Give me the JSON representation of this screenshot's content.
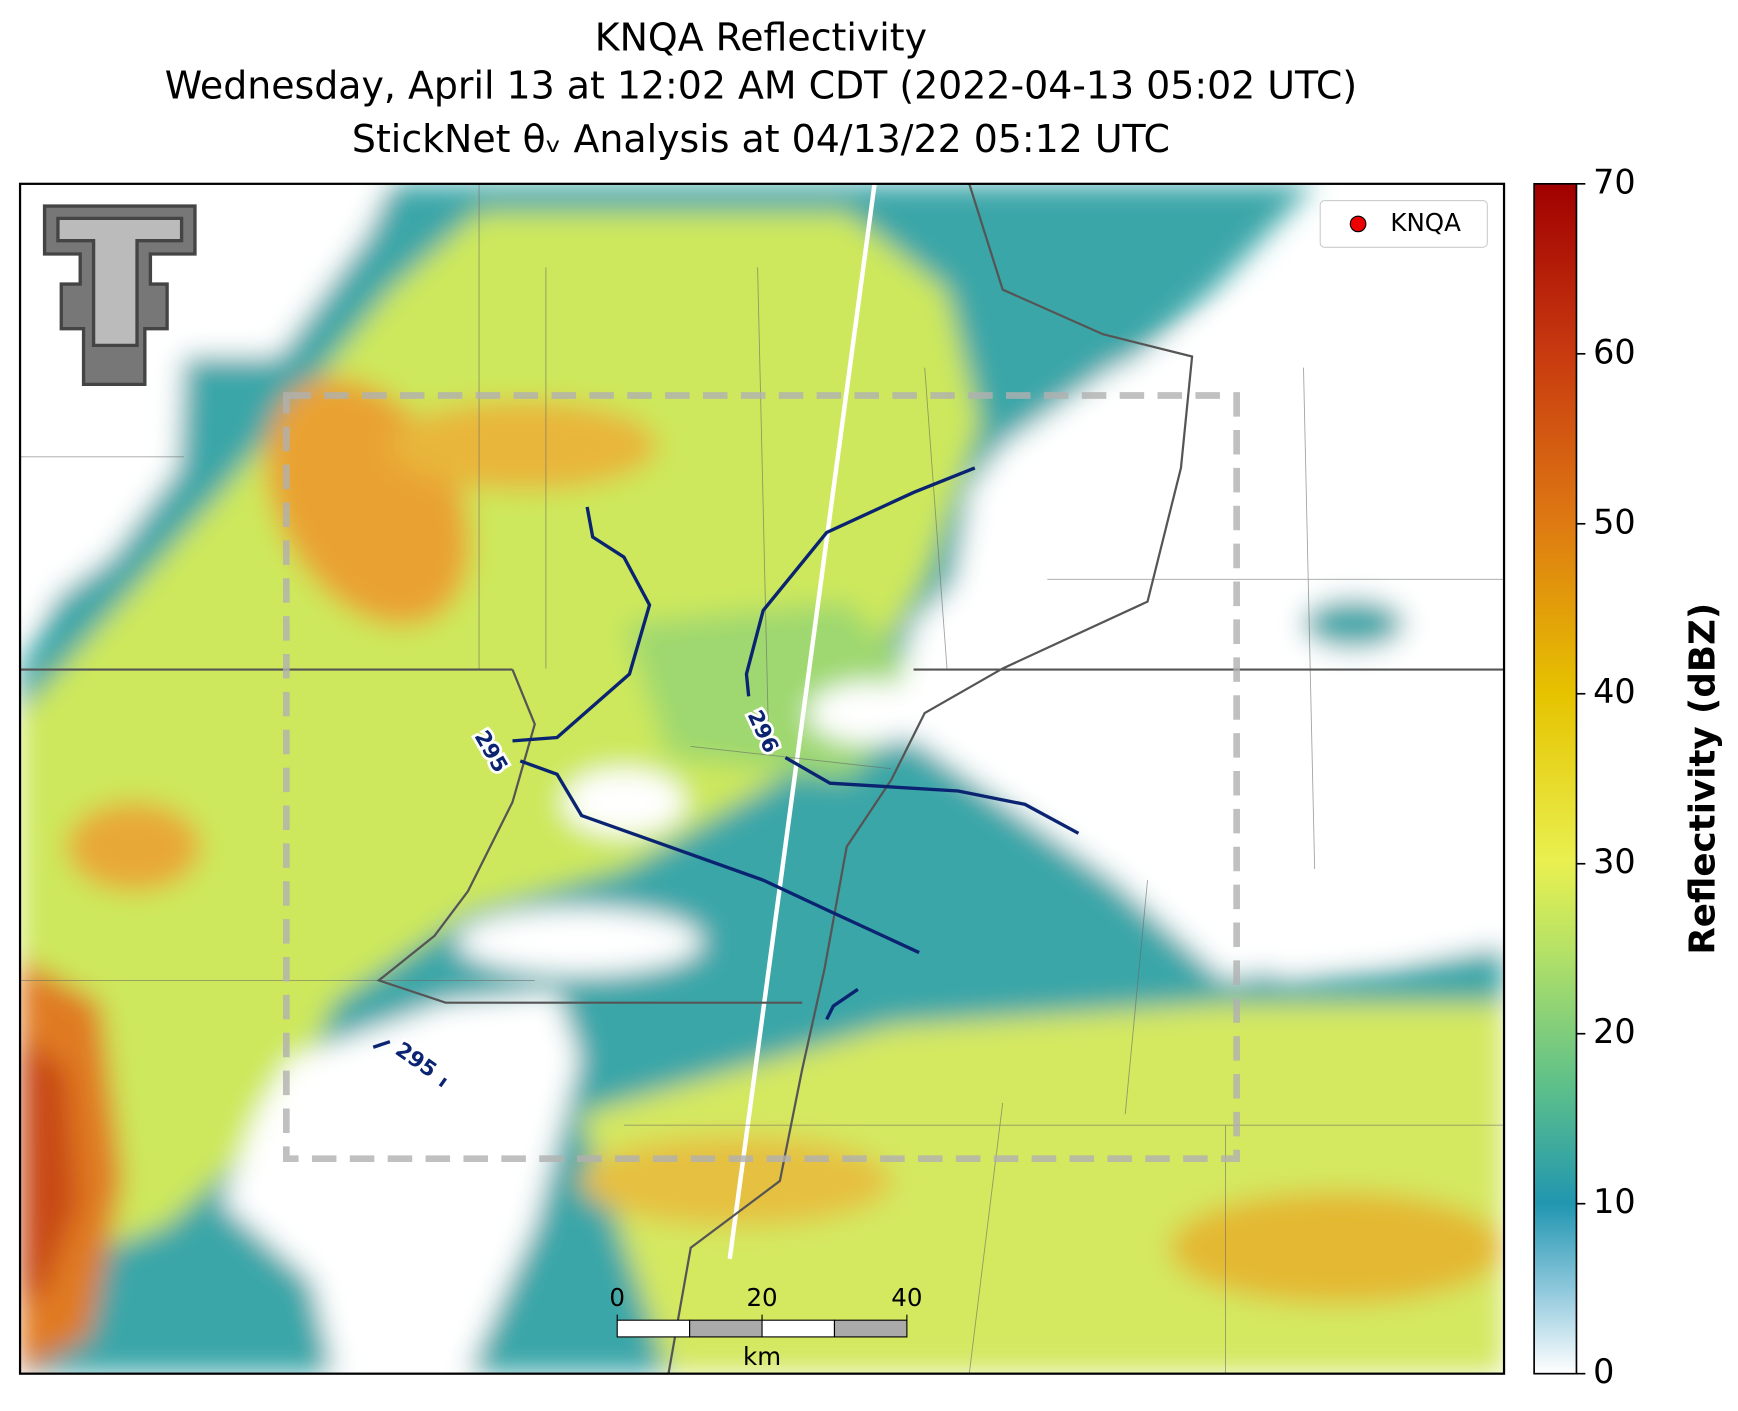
{
  "title": [
    "KNQA Reflectivity",
    "Wednesday, April 13 at 12:02 AM CDT (2022-04-13 05:02 UTC)",
    "StickNet θᵥ Analysis at 04/13/22 05:12 UTC"
  ],
  "legend": {
    "label": "KNQA"
  },
  "colorbar": {
    "label": "Reflectivity (dBZ)",
    "lim": [
      0,
      70
    ],
    "ticks": [
      0,
      10,
      20,
      30,
      40,
      50,
      60,
      70
    ]
  },
  "contours": [
    {
      "label": "295"
    },
    {
      "label": "296"
    },
    {
      "label": "295"
    }
  ],
  "scalebar": {
    "ticks": [
      0,
      20,
      40
    ],
    "unit": "km"
  }
}
